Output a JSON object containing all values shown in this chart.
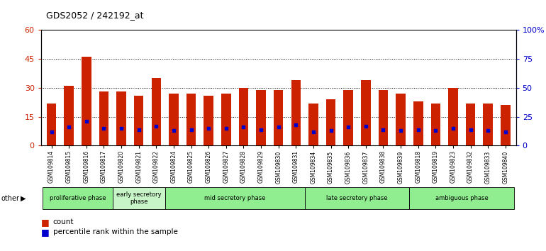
{
  "title": "GDS2052 / 242192_at",
  "samples": [
    "GSM109814",
    "GSM109815",
    "GSM109816",
    "GSM109817",
    "GSM109820",
    "GSM109821",
    "GSM109822",
    "GSM109824",
    "GSM109825",
    "GSM109826",
    "GSM109827",
    "GSM109828",
    "GSM109829",
    "GSM109830",
    "GSM109831",
    "GSM109834",
    "GSM109835",
    "GSM109836",
    "GSM109837",
    "GSM109838",
    "GSM109839",
    "GSM109818",
    "GSM109819",
    "GSM109823",
    "GSM109832",
    "GSM109833",
    "GSM109840"
  ],
  "counts": [
    22,
    31,
    46,
    28,
    28,
    26,
    35,
    27,
    27,
    26,
    27,
    30,
    29,
    29,
    34,
    22,
    24,
    29,
    34,
    29,
    27,
    23,
    22,
    30,
    22,
    22,
    21
  ],
  "percentiles": [
    12,
    16,
    21,
    15,
    15,
    14,
    17,
    13,
    14,
    15,
    15,
    16,
    14,
    16,
    18,
    12,
    13,
    16,
    17,
    14,
    13,
    14,
    13,
    15,
    14,
    13,
    12
  ],
  "phases": [
    {
      "name": "proliferative phase",
      "start": 0,
      "end": 4,
      "color": "#90EE90"
    },
    {
      "name": "early secretory\nphase",
      "start": 4,
      "end": 7,
      "color": "#c8f5c8"
    },
    {
      "name": "mid secretory phase",
      "start": 7,
      "end": 15,
      "color": "#90EE90"
    },
    {
      "name": "late secretory phase",
      "start": 15,
      "end": 21,
      "color": "#90EE90"
    },
    {
      "name": "ambiguous phase",
      "start": 21,
      "end": 27,
      "color": "#90EE90"
    }
  ],
  "left_ylim": [
    0,
    60
  ],
  "right_ylim": [
    0,
    100
  ],
  "left_yticks": [
    0,
    15,
    30,
    45,
    60
  ],
  "right_yticks": [
    0,
    25,
    50,
    75,
    100
  ],
  "bar_color": "#cc2200",
  "percentile_color": "#0000cc",
  "bg_color": "#cccccc",
  "title_color": "#000000",
  "left_tick_color": "#cc2200",
  "right_tick_color": "#0000cc",
  "grid_color": "black",
  "grid_linewidth": 0.7,
  "bar_width": 0.55
}
